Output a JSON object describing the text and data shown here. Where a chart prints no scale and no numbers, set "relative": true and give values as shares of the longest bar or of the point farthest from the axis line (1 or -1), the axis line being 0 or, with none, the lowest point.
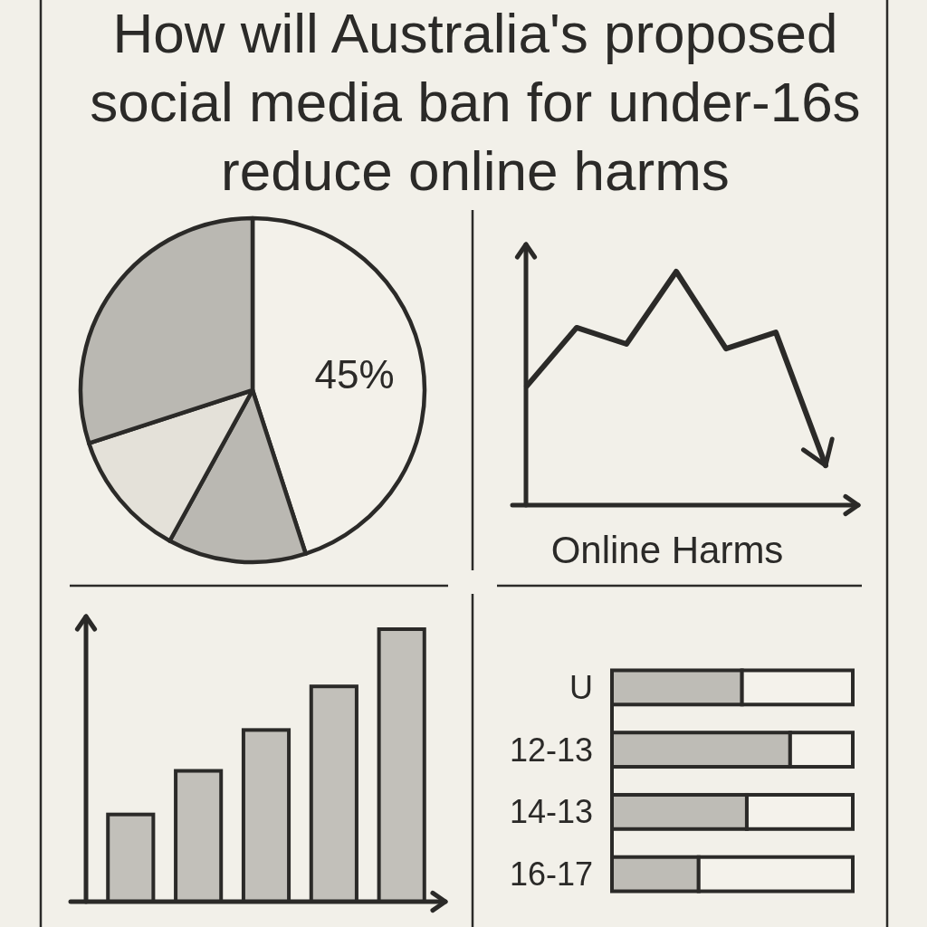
{
  "chart_data": [
    {
      "type": "pie",
      "title": "How will Australia's proposed social media ban for under-16s reduce online harms",
      "categories": [
        null,
        null,
        null,
        null
      ],
      "values": [
        45,
        13,
        12,
        30
      ],
      "colors": [
        "#f3f1ea",
        "#bab8b2",
        "#e4e1d9",
        "#bab8b2"
      ],
      "value_labels": [
        "45%",
        null,
        null,
        null
      ]
    },
    {
      "type": "line",
      "xlabel": "Online Harms",
      "relative": true,
      "categories": [
        null,
        null,
        null,
        null,
        null,
        null,
        null
      ],
      "series": [
        {
          "color": "#2b2a28",
          "values": [
            0.51,
            0.76,
            0.69,
            1,
            0.67,
            0.74,
            0.17
          ]
        }
      ]
    },
    {
      "type": "bar",
      "relative": true,
      "categories": [
        null,
        null,
        null,
        null,
        null
      ],
      "values": [
        0.32,
        0.48,
        0.63,
        0.79,
        1
      ],
      "color": "#c2c0ba"
    },
    {
      "type": "bar",
      "orientation": "horizontal",
      "stacked": true,
      "relative": true,
      "categories": [
        "U",
        "12-13",
        "14-13",
        "16-17"
      ],
      "series": [
        {
          "color": "#bebcb6",
          "values": [
            0.54,
            0.74,
            0.56,
            0.36
          ]
        },
        {
          "color": "#f4f2eb",
          "values": [
            0.46,
            0.26,
            0.44,
            0.64
          ]
        }
      ]
    }
  ]
}
